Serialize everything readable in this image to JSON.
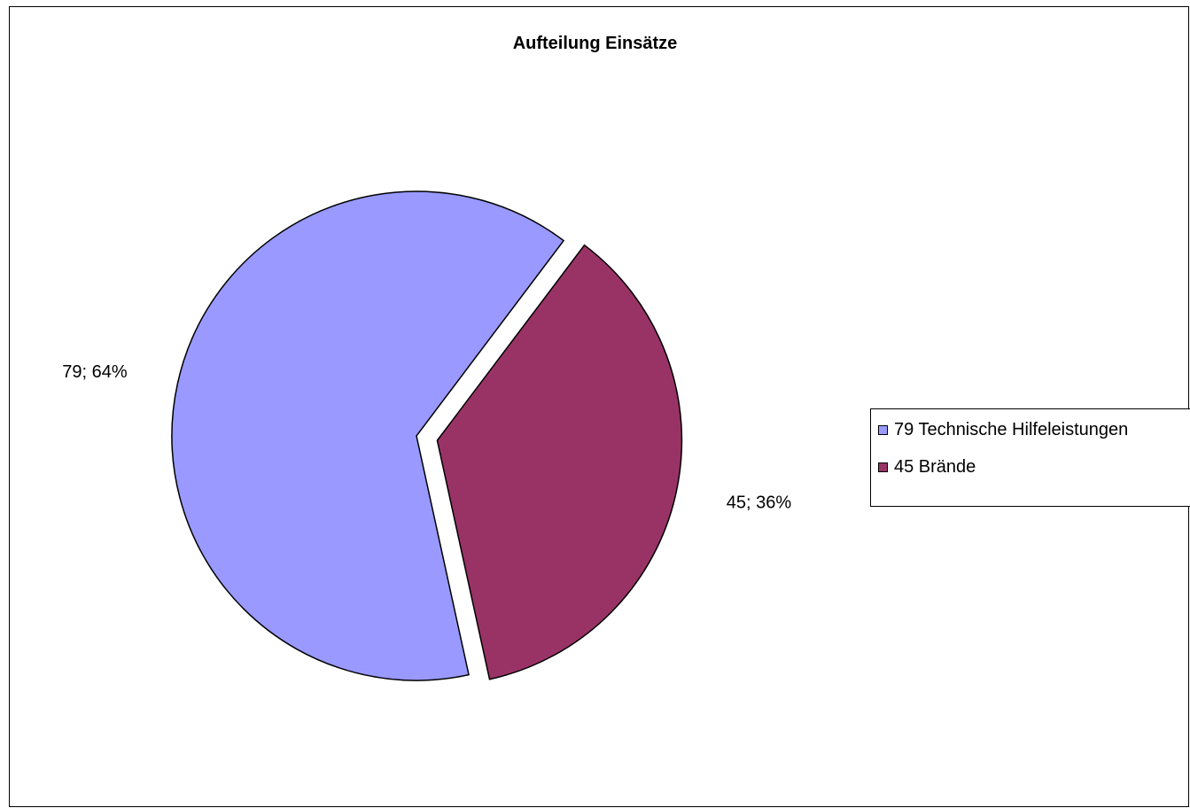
{
  "chart_data": {
    "type": "pie",
    "title": "Aufteilung Einsätze",
    "slices": [
      {
        "label": "79 Technische Hilfeleistungen",
        "value": 79,
        "percent": 64,
        "data_label": "79; 64%",
        "color": "#9999ff",
        "exploded": false
      },
      {
        "label": "45 Brände",
        "value": 45,
        "percent": 36,
        "data_label": "45; 36%",
        "color": "#993366",
        "exploded": true
      }
    ],
    "legend": {
      "placement": "right",
      "entries": [
        "79 Technische Hilfeleistungen",
        "45 Brände"
      ]
    }
  }
}
